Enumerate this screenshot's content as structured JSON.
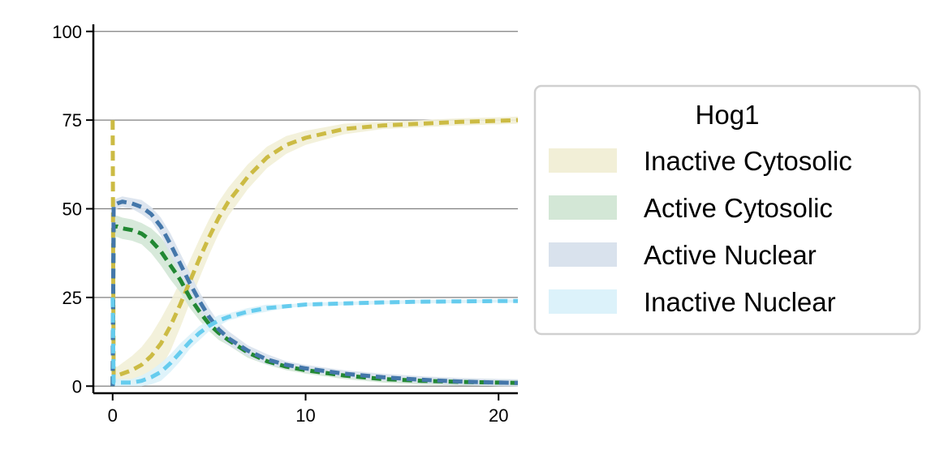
{
  "chart_data": {
    "type": "line",
    "title": "",
    "xlabel": "",
    "ylabel": "",
    "xlim": [
      -1,
      21
    ],
    "ylim": [
      -2,
      102
    ],
    "x_ticks": [
      0,
      10,
      20
    ],
    "y_ticks": [
      0,
      25,
      50,
      75,
      100
    ],
    "grid": "horizontal",
    "legend_title": "Hog1",
    "legend_position": "outside-right",
    "x": [
      0,
      0.05,
      0.25,
      0.5,
      1,
      1.5,
      2,
      2.5,
      3,
      3.5,
      4,
      4.5,
      5,
      5.5,
      6,
      7,
      8,
      9,
      10,
      12,
      14,
      16,
      18,
      20,
      21
    ],
    "series": [
      {
        "name": "Inactive Cytosolic",
        "color": "#ccbb44",
        "band_color": "#f2efd7",
        "values": [
          75,
          3,
          3,
          3.5,
          4.5,
          6,
          8.5,
          12,
          17,
          23,
          29.5,
          36,
          42,
          47.5,
          52,
          59,
          64.5,
          68,
          70,
          72.5,
          73.5,
          74,
          74.5,
          74.8,
          75
        ],
        "band": [
          2.5,
          2.5,
          2.5,
          3,
          4,
          5,
          6,
          7,
          7,
          6.5,
          6,
          5.5,
          5,
          4.5,
          4,
          3.5,
          3,
          2.5,
          2,
          1.5,
          1,
          1,
          1,
          1,
          1
        ]
      },
      {
        "name": "Active Cytosolic",
        "color": "#228833",
        "band_color": "#d3e7d6",
        "values": [
          0,
          45,
          45,
          44.5,
          44,
          43,
          41,
          38,
          34,
          30,
          25,
          21,
          17.5,
          15,
          13,
          9.5,
          7,
          5.5,
          4.5,
          3,
          2,
          1.5,
          1.2,
          1,
          0.9
        ],
        "band": [
          0,
          3,
          3,
          3,
          3,
          3,
          3.5,
          4,
          4,
          3.5,
          3,
          2.5,
          2,
          2,
          1.5,
          1.5,
          1,
          1,
          1,
          1,
          1,
          1,
          1,
          1,
          1
        ]
      },
      {
        "name": "Active Nuclear",
        "color": "#4477aa",
        "band_color": "#d9e2ed",
        "values": [
          0,
          51,
          51.5,
          52,
          51.5,
          50.5,
          48.5,
          45,
          40,
          34.5,
          29,
          24,
          19.5,
          16,
          13.5,
          10,
          7.5,
          6,
          5,
          3.5,
          2.5,
          1.8,
          1.3,
          1,
          0.9
        ],
        "band": [
          0,
          1.5,
          1.5,
          1.5,
          1.5,
          2,
          2,
          2.5,
          3,
          3,
          3,
          2.5,
          2.5,
          2,
          2,
          1.5,
          1.5,
          1,
          1,
          1,
          1,
          1,
          1,
          1,
          1
        ]
      },
      {
        "name": "Inactive Nuclear",
        "color": "#66ccee",
        "band_color": "#dcf2fa",
        "values": [
          25,
          1,
          1,
          1,
          1,
          1.5,
          2.5,
          4,
          6.5,
          9.5,
          12.5,
          15,
          17,
          18.5,
          19.5,
          21,
          22,
          22.5,
          23,
          23.3,
          23.6,
          23.8,
          23.9,
          24,
          24
        ],
        "band": [
          0.5,
          1,
          1,
          1,
          1,
          1.5,
          2,
          2.5,
          2.5,
          2.5,
          2,
          2,
          1.5,
          1.5,
          1,
          1,
          1,
          0.5,
          0.5,
          0.5,
          0.5,
          0.5,
          0.5,
          0.5,
          0.5
        ]
      }
    ]
  }
}
